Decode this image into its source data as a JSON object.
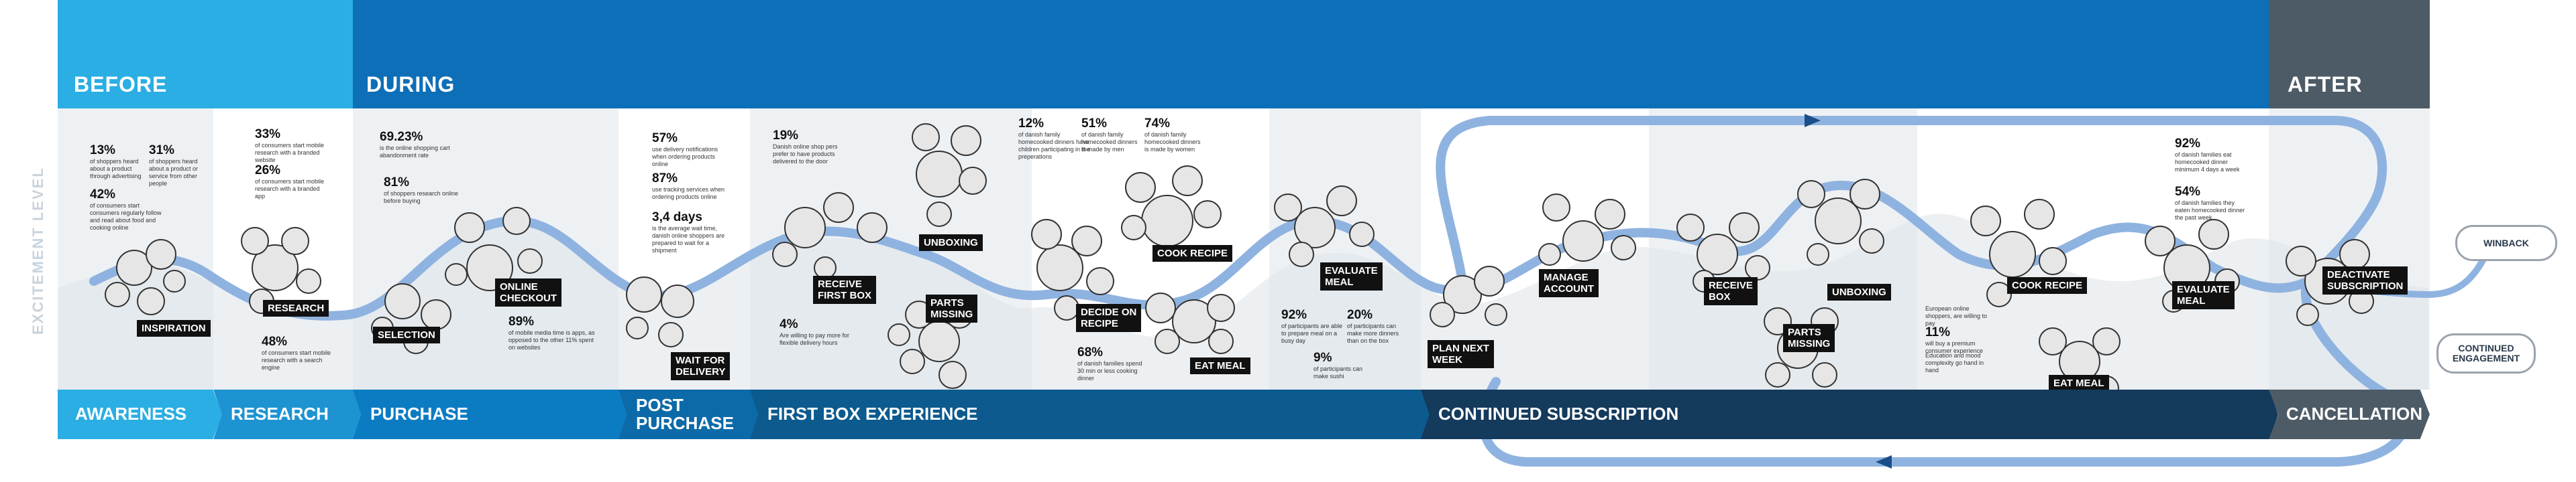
{
  "phases": {
    "before": "BEFORE",
    "during": "DURING",
    "after": "AFTER"
  },
  "axis_label": "EXCITEMENT LEVEL",
  "stages": [
    {
      "label": "AWARENESS"
    },
    {
      "label": "RESEARCH"
    },
    {
      "label": "PURCHASE"
    },
    {
      "label": "POST\nPURCHASE"
    },
    {
      "label": "FIRST BOX EXPERIENCE"
    },
    {
      "label": "CONTINUED SUBSCRIPTION"
    },
    {
      "label": "CANCELLATION"
    }
  ],
  "nodes": {
    "inspiration": "INSPIRATION",
    "research": "RESEARCH",
    "selection": "SELECTION",
    "online_checkout": "ONLINE\nCHECKOUT",
    "wait_for_delivery": "WAIT FOR\nDELIVERY",
    "receive_first_box": "RECEIVE\nFIRST BOX",
    "unboxing_1": "UNBOXING",
    "parts_missing_1": "PARTS\nMISSING",
    "cook_recipe_1": "COOK RECIPE",
    "decide_on_recipe": "DECIDE ON\nRECIPE",
    "eat_meal_1": "EAT MEAL",
    "evaluate_meal_1": "EVALUATE\nMEAL",
    "plan_next_week": "PLAN NEXT\nWEEK",
    "manage_account": "MANAGE\nACCOUNT",
    "receive_box": "RECEIVE\nBOX",
    "unboxing_2": "UNBOXING",
    "parts_missing_2": "PARTS\nMISSING",
    "cook_recipe_2": "COOK RECIPE",
    "eat_meal_2": "EAT MEAL",
    "evaluate_meal_2": "EVALUATE\nMEAL",
    "deactivate_subscription": "DEACTIVATE\nSUBSCRIPTION",
    "winback": "WINBACK",
    "continued_engagement": "CONTINUED\nENGAGEMENT"
  },
  "stats": {
    "s1": {
      "value": "13%",
      "text": "of shoppers heard about a product through advertising"
    },
    "s2": {
      "value": "31%",
      "text": "of shoppers heard about a product or service from other people"
    },
    "s3": {
      "value": "42%",
      "text": "of consumers start consumers regularly follow and read about food and cooking online"
    },
    "s4": {
      "value": "33%",
      "text": "of consumers start mobile research with a branded website"
    },
    "s5": {
      "value": "26%",
      "text": "of consumers start mobile research with a branded app"
    },
    "s6": {
      "value": "48%",
      "text": "of consumers start mobile research with a search engine"
    },
    "s7": {
      "value": "69.23%",
      "text": "is the online shopping cart abandonment rate"
    },
    "s8": {
      "value": "81%",
      "text": "of shoppers research online before buying"
    },
    "s9": {
      "value": "89%",
      "text": "of mobile media time is apps, as opposed to the other 11% spent on websites"
    },
    "s10": {
      "value": "57%",
      "text": "use delivery notifications when ordering products online"
    },
    "s11": {
      "value": "87%",
      "text": "use tracking services when ordering products online"
    },
    "s12": {
      "value": "3,4 days",
      "text": "is the average wait time, danish online shoppers are prepared to wait for a shipment"
    },
    "s13": {
      "value": "19%",
      "text": "Danish online shop pers prefer to have products delivered to the door"
    },
    "s14": {
      "value": "4%",
      "text": "Are willing to pay more for flexible delivery hours"
    },
    "s15": {
      "value": "12%",
      "text": "of danish family homecooked dinners have children participating in the preperations"
    },
    "s16": {
      "value": "51%",
      "text": "of danish family homecooked dinners is made by men"
    },
    "s17": {
      "value": "74%",
      "text": "of danish family homecooked dinners is made by women"
    },
    "s18": {
      "value": "68%",
      "text": "of danish families spend 30 min or less cooking dinner"
    },
    "s19": {
      "value": "92%",
      "text": "of participants are able to prepare meal on a busy day"
    },
    "s20": {
      "value": "20%",
      "text": "of participants can make more dinners than on the box"
    },
    "s21": {
      "value": "9%",
      "text": "of participants can make sushi"
    },
    "s22": {
      "value": "11%",
      "text": "will buy a premium consumer experience"
    },
    "s23": {
      "value": "92%",
      "text": "of danish families eat homecooked dinner minimum 4 days a week"
    },
    "s24": {
      "value": "54%",
      "text": "of danish families they eaten homecooked dinner the past week"
    }
  },
  "notes": {
    "eu_shoppers": "European online shoppers, are willing to pay",
    "education": "Education and mood complexity go hand in hand"
  },
  "colors": {
    "before": "#2aaee3",
    "during": "#0d6fb8",
    "after": "#4d5b66",
    "path": "#8fb3e0",
    "dark_stage": "#143a5c"
  }
}
